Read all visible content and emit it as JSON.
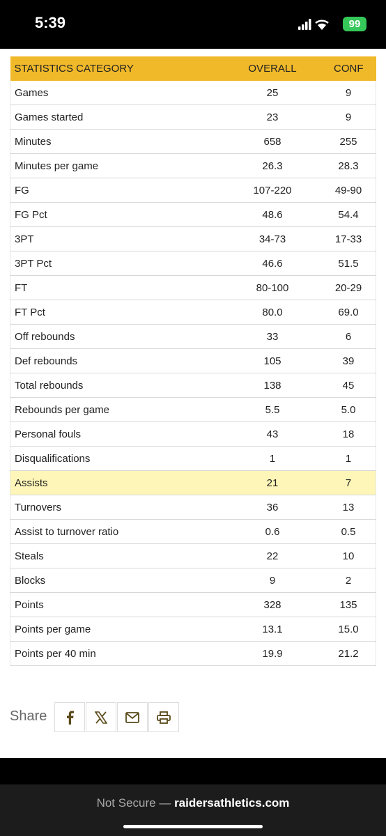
{
  "status_bar": {
    "time": "5:39",
    "battery": "99"
  },
  "table": {
    "header": [
      "STATISTICS CATEGORY",
      "OVERALL",
      "CONF"
    ],
    "rows": [
      [
        "Games",
        "25",
        "9"
      ],
      [
        "Games started",
        "23",
        "9"
      ],
      [
        "Minutes",
        "658",
        "255"
      ],
      [
        "Minutes per game",
        "26.3",
        "28.3"
      ],
      [
        "FG",
        "107-220",
        "49-90"
      ],
      [
        "FG Pct",
        "48.6",
        "54.4"
      ],
      [
        "3PT",
        "34-73",
        "17-33"
      ],
      [
        "3PT Pct",
        "46.6",
        "51.5"
      ],
      [
        "FT",
        "80-100",
        "20-29"
      ],
      [
        "FT Pct",
        "80.0",
        "69.0"
      ],
      [
        "Off rebounds",
        "33",
        "6"
      ],
      [
        "Def rebounds",
        "105",
        "39"
      ],
      [
        "Total rebounds",
        "138",
        "45"
      ],
      [
        "Rebounds per game",
        "5.5",
        "5.0"
      ],
      [
        "Personal fouls",
        "43",
        "18"
      ],
      [
        "Disqualifications",
        "1",
        "1"
      ],
      [
        "Assists",
        "21",
        "7"
      ],
      [
        "Turnovers",
        "36",
        "13"
      ],
      [
        "Assist to turnover ratio",
        "0.6",
        "0.5"
      ],
      [
        "Steals",
        "22",
        "10"
      ],
      [
        "Blocks",
        "9",
        "2"
      ],
      [
        "Points",
        "328",
        "135"
      ],
      [
        "Points per game",
        "13.1",
        "15.0"
      ],
      [
        "Points per 40 min",
        "19.9",
        "21.2"
      ]
    ]
  },
  "share": {
    "label": "Share"
  },
  "browser": {
    "security": "Not Secure —",
    "domain": "raidersathletics.com"
  }
}
